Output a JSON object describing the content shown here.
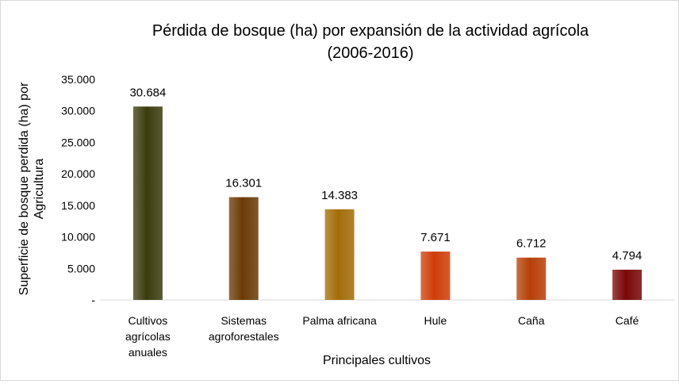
{
  "chart_data": {
    "type": "bar",
    "title_lines": [
      "Pérdida de bosque (ha) por expansión de la actividad agrícola",
      "(2006-2016)"
    ],
    "xlabel": "Principales cultivos",
    "ylabel_lines": [
      "Superficie de bosque perdida (ha) por",
      "Agricultura"
    ],
    "ylim": [
      0,
      35000
    ],
    "y_ticks": [
      0,
      5000,
      10000,
      15000,
      20000,
      25000,
      30000,
      35000
    ],
    "y_tick_labels": [
      "-",
      "5.000",
      "10.000",
      "15.000",
      "20.000",
      "25.000",
      "30.000",
      "35.000"
    ],
    "grid": false,
    "legend": "none",
    "categories": [
      {
        "label_lines": [
          "Cultivos",
          "agrícolas",
          "anuales"
        ],
        "value": 30684,
        "value_label": "30.684",
        "color": "#3b3c0d"
      },
      {
        "label_lines": [
          "Sistemas",
          "agroforestales"
        ],
        "value": 16301,
        "value_label": "16.301",
        "color": "#6b3a06"
      },
      {
        "label_lines": [
          "Palma africana"
        ],
        "value": 14383,
        "value_label": "14.383",
        "color": "#a36c08"
      },
      {
        "label_lines": [
          "Hule"
        ],
        "value": 7671,
        "value_label": "7.671",
        "color": "#cf3d08"
      },
      {
        "label_lines": [
          "Caña"
        ],
        "value": 6712,
        "value_label": "6.712",
        "color": "#b63f08"
      },
      {
        "label_lines": [
          "Café"
        ],
        "value": 4794,
        "value_label": "4.794",
        "color": "#7a0707"
      }
    ]
  }
}
